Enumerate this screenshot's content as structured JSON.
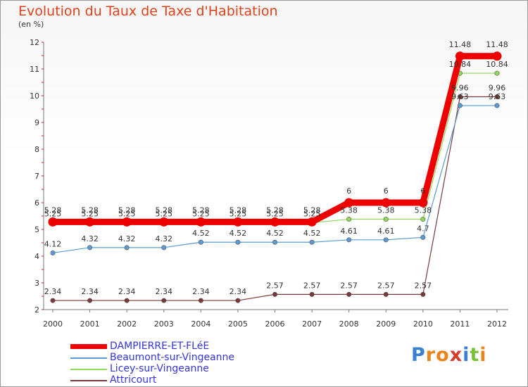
{
  "chart_data": {
    "type": "line",
    "title": "Evolution du Taux de Taxe d'Habitation",
    "ylabel": "(en %)",
    "x": [
      "2000",
      "2001",
      "2002",
      "2003",
      "2004",
      "2005",
      "2006",
      "2007",
      "2008",
      "2009",
      "2010",
      "2011",
      "2012"
    ],
    "ylim": [
      2,
      12
    ],
    "yticks": [
      "2",
      "3",
      "4",
      "5",
      "6",
      "7",
      "8",
      "9",
      "10",
      "11",
      "12"
    ],
    "series": [
      {
        "name": "DAMPIERRE-ET-FLéE",
        "color": "#ee0000",
        "values": [
          5.28,
          5.28,
          5.28,
          5.28,
          5.28,
          5.28,
          5.28,
          5.28,
          6,
          6,
          6,
          11.48,
          11.48
        ],
        "labels": [
          "5.28",
          "5.28",
          "5.28",
          "5.28",
          "5.28",
          "5.28",
          "5.28",
          "5.28",
          "6",
          "6",
          "6",
          "11.48",
          "11.48"
        ]
      },
      {
        "name": "Beaumont-sur-Vingeanne",
        "color": "#5a9bd4",
        "values": [
          4.12,
          4.32,
          4.32,
          4.32,
          4.52,
          4.52,
          4.52,
          4.52,
          4.61,
          4.61,
          4.7,
          9.63,
          9.63
        ],
        "labels": [
          "4.12",
          "4.32",
          "4.32",
          "4.32",
          "4.52",
          "4.52",
          "4.52",
          "4.52",
          "4.61",
          "4.61",
          "4.7",
          "9.63",
          "9.63"
        ]
      },
      {
        "name": "Licey-sur-Vingeanne",
        "color": "#8fd85a",
        "values": [
          5.25,
          5.25,
          5.25,
          5.25,
          5.25,
          5.25,
          5.25,
          5.25,
          5.38,
          5.38,
          5.38,
          10.84,
          10.84
        ],
        "labels": [
          "5.25",
          "5.25",
          "5.25",
          "5.25",
          "5.25",
          "5.25",
          "5.25",
          "5.25",
          "5.38",
          "5.38",
          "5.38",
          "10.84",
          "10.84"
        ]
      },
      {
        "name": "Attricourt",
        "color": "#7a3a3a",
        "values": [
          2.34,
          2.34,
          2.34,
          2.34,
          2.34,
          2.34,
          2.57,
          2.57,
          2.57,
          2.57,
          2.57,
          9.96,
          9.96
        ],
        "labels": [
          "2.34",
          "2.34",
          "2.34",
          "2.34",
          "2.34",
          "2.34",
          "2.57",
          "2.57",
          "2.57",
          "2.57",
          "2.57",
          "9.96",
          "9.96"
        ]
      }
    ]
  },
  "legend": {
    "items": [
      "DAMPIERRE-ET-FLéE",
      "Beaumont-sur-Vingeanne",
      "Licey-sur-Vingeanne",
      "Attricourt"
    ]
  },
  "brand": {
    "letters": [
      "P",
      "r",
      "o",
      "x",
      "i",
      "t",
      "i"
    ],
    "colors": [
      "#3a7fd0",
      "#e9851f",
      "#e9851f",
      "#d83a2b",
      "#3a7fd0",
      "#7cbf3a",
      "#e9851f"
    ]
  }
}
